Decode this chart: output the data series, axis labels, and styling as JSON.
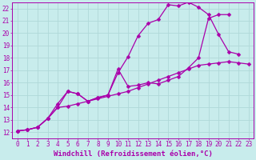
{
  "background_color": "#c8ecec",
  "grid_color": "#b0d8d8",
  "line_color": "#aa00aa",
  "marker": "D",
  "marker_size": 2.5,
  "xlim": [
    -0.5,
    23.5
  ],
  "ylim": [
    11.5,
    22.5
  ],
  "xticks": [
    0,
    1,
    2,
    3,
    4,
    5,
    6,
    7,
    8,
    9,
    10,
    11,
    12,
    13,
    14,
    15,
    16,
    17,
    18,
    19,
    20,
    21,
    22,
    23
  ],
  "yticks": [
    12,
    13,
    14,
    15,
    16,
    17,
    18,
    19,
    20,
    21,
    22
  ],
  "xlabel": "Windchill (Refroidissement éolien,°C)",
  "series": [
    {
      "x": [
        0,
        1,
        2,
        3,
        4,
        5,
        6,
        7,
        8,
        9,
        10,
        11,
        12,
        13,
        14,
        15,
        16,
        17,
        18,
        19,
        20,
        21,
        22,
        23
      ],
      "y": [
        12.1,
        12.2,
        12.4,
        13.1,
        14.0,
        14.1,
        14.3,
        14.5,
        14.7,
        14.9,
        15.1,
        15.3,
        15.6,
        15.9,
        16.2,
        16.5,
        16.8,
        17.1,
        17.4,
        17.5,
        17.6,
        17.7,
        17.6,
        17.5
      ]
    },
    {
      "x": [
        0,
        1,
        2,
        3,
        4,
        5,
        6,
        7,
        8,
        9,
        10,
        11,
        12,
        13,
        14,
        15,
        16,
        17,
        18,
        19,
        20,
        21,
        22
      ],
      "y": [
        12.1,
        12.2,
        12.4,
        13.1,
        14.0,
        15.3,
        15.1,
        14.5,
        14.8,
        15.0,
        16.8,
        18.1,
        19.8,
        20.8,
        21.1,
        22.3,
        22.2,
        22.5,
        22.1,
        21.5,
        19.9,
        18.5,
        18.3
      ]
    },
    {
      "x": [
        0,
        1,
        2,
        3,
        4,
        5,
        6,
        7,
        8,
        9,
        10,
        11,
        12,
        13,
        14,
        15,
        16,
        17,
        18,
        19,
        20,
        21
      ],
      "y": [
        12.1,
        12.2,
        12.4,
        13.1,
        14.3,
        15.3,
        15.1,
        14.5,
        14.8,
        15.0,
        17.1,
        15.7,
        15.8,
        16.0,
        15.9,
        16.2,
        16.5,
        17.2,
        18.0,
        21.2,
        21.5,
        21.5
      ]
    }
  ],
  "tick_fontsize": 5.5,
  "xlabel_fontsize": 6.5,
  "linewidth": 0.9
}
